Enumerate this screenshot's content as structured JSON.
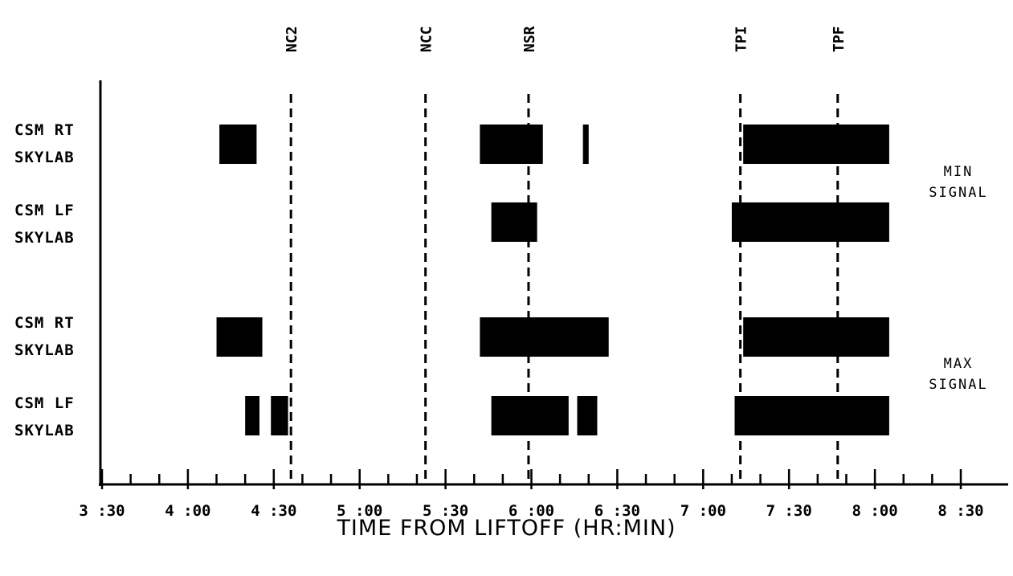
{
  "chart_data": {
    "type": "timeline",
    "xlabel": "TIME FROM LIFTOFF (HR:MIN)",
    "x_ticks": [
      "3 :30",
      "4 :00",
      "4 :30",
      "5 :00",
      "5 :30",
      "6 :00",
      "6 :30",
      "7 :00",
      "7 :30",
      "8 :00",
      "8 :30"
    ],
    "xlim": [
      "3:30",
      "8:30"
    ],
    "events": [
      {
        "name": "NC2",
        "time": "4:36"
      },
      {
        "name": "NCC",
        "time": "5:23"
      },
      {
        "name": "NSR",
        "time": "5:59"
      },
      {
        "name": "TPI",
        "time": "7:13"
      },
      {
        "name": "TPF",
        "time": "7:47"
      }
    ],
    "groups": [
      {
        "label": "MIN SIGNAL",
        "label_lines": [
          "MIN",
          "SIGNAL"
        ]
      },
      {
        "label": "MAX SIGNAL",
        "label_lines": [
          "MAX",
          "SIGNAL"
        ]
      }
    ],
    "rows": [
      {
        "lines": [
          "CSM RT",
          "SKYLAB"
        ],
        "group": "MIN SIGNAL",
        "intervals": [
          [
            "4:11",
            "4:24"
          ],
          [
            "5:42",
            "6:04"
          ],
          [
            "6:18",
            "6:20"
          ],
          [
            "7:14",
            "8:05"
          ]
        ]
      },
      {
        "lines": [
          "CSM LF",
          "SKYLAB"
        ],
        "group": "MIN SIGNAL",
        "intervals": [
          [
            "5:46",
            "6:02"
          ],
          [
            "7:10",
            "8:05"
          ]
        ]
      },
      {
        "lines": [
          "CSM RT",
          "SKYLAB"
        ],
        "group": "MAX SIGNAL",
        "intervals": [
          [
            "4:10",
            "4:26"
          ],
          [
            "5:42",
            "6:27"
          ],
          [
            "7:14",
            "8:05"
          ]
        ]
      },
      {
        "lines": [
          "CSM LF",
          "SKYLAB"
        ],
        "group": "MAX SIGNAL",
        "intervals": [
          [
            "4:20",
            "4:25"
          ],
          [
            "4:29",
            "4:35"
          ],
          [
            "5:46",
            "6:13"
          ],
          [
            "6:16",
            "6:23"
          ],
          [
            "7:11",
            "8:05"
          ]
        ]
      }
    ]
  }
}
